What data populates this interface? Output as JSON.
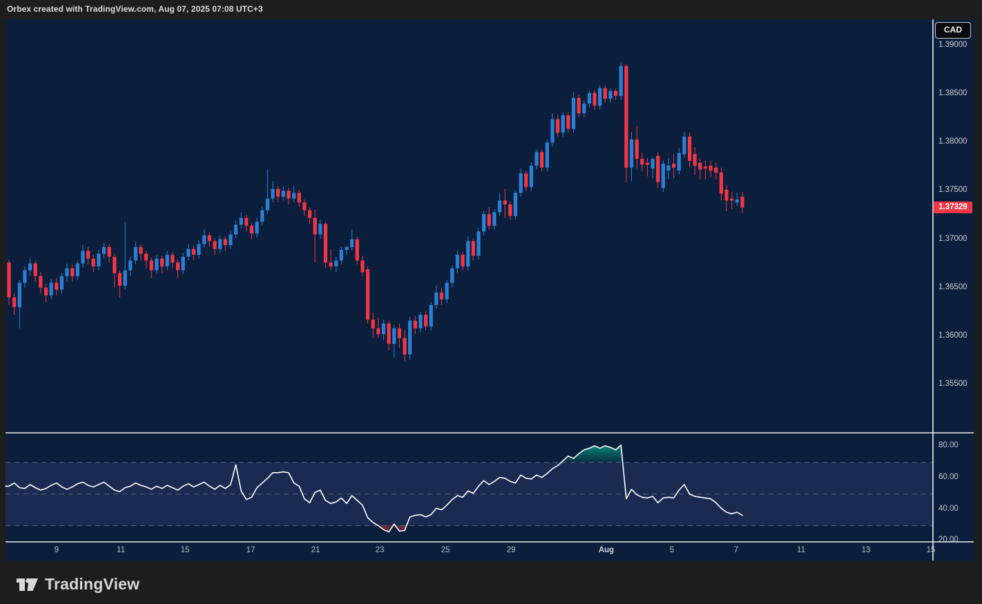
{
  "header": {
    "attribution": "Orbex created with TradingView.com, Aug 07, 2025 07:08 UTC+3"
  },
  "price_scale": {
    "currency_badge": "CAD",
    "tick_labels": [
      "1.39000",
      "1.38500",
      "1.38000",
      "1.37500",
      "1.37000",
      "1.36500",
      "1.36000",
      "1.35500"
    ],
    "tick_values": [
      1.39,
      1.385,
      1.38,
      1.375,
      1.37,
      1.365,
      1.36,
      1.355
    ],
    "last_price_label": "1.37329",
    "last_price": 1.37329,
    "last_price_bg": "#f23645"
  },
  "indicator_scale": {
    "tick_labels": [
      "80.00",
      "60.00",
      "40.00",
      "20.00"
    ],
    "tick_values": [
      80,
      60,
      40,
      20
    ]
  },
  "time_scale": {
    "labels": [
      {
        "text": "9",
        "x": 82
      },
      {
        "text": "11",
        "x": 175
      },
      {
        "text": "15",
        "x": 268
      },
      {
        "text": "17",
        "x": 363
      },
      {
        "text": "21",
        "x": 457
      },
      {
        "text": "23",
        "x": 550
      },
      {
        "text": "25",
        "x": 645
      },
      {
        "text": "29",
        "x": 740
      },
      {
        "text": "Aug",
        "x": 878,
        "month": true
      },
      {
        "text": "5",
        "x": 973
      },
      {
        "text": "7",
        "x": 1066
      },
      {
        "text": "11",
        "x": 1160
      },
      {
        "text": "13",
        "x": 1254
      },
      {
        "text": "15",
        "x": 1348
      }
    ]
  },
  "footer": {
    "logo_text": "TradingView"
  },
  "colors": {
    "frame_bg": "#1d1d1d",
    "pane_bg": "#0b1f3c",
    "band_fill": "#1a2a50",
    "separator": "#eceef1",
    "dashed_level": "#9097a3",
    "up": "#2b80d6",
    "down": "#f23645",
    "rsi_line": "#ffffff",
    "overbought_fill": "#089981",
    "oversold_fill": "#f23645",
    "axis_text": "#cdd0d6"
  },
  "chart_data": {
    "type": "candlestick",
    "title": "",
    "currency": "CAD",
    "price_pane": {
      "ylim": [
        1.35,
        1.3927
      ],
      "grid": false,
      "ohlc": [
        [
          1.3676,
          1.3679,
          1.3632,
          1.364
        ],
        [
          1.364,
          1.3644,
          1.3622,
          1.363
        ],
        [
          1.363,
          1.3658,
          1.3608,
          1.3655
        ],
        [
          1.3655,
          1.3672,
          1.365,
          1.3668
        ],
        [
          1.3668,
          1.3681,
          1.3662,
          1.3675
        ],
        [
          1.3675,
          1.3678,
          1.3656,
          1.3662
        ],
        [
          1.3662,
          1.3666,
          1.3644,
          1.365
        ],
        [
          1.365,
          1.3654,
          1.3635,
          1.3642
        ],
        [
          1.3642,
          1.3659,
          1.3638,
          1.3655
        ],
        [
          1.3655,
          1.366,
          1.3642,
          1.3648
        ],
        [
          1.3648,
          1.3665,
          1.3644,
          1.3662
        ],
        [
          1.3662,
          1.3675,
          1.3656,
          1.367
        ],
        [
          1.367,
          1.3674,
          1.3656,
          1.3662
        ],
        [
          1.3662,
          1.3678,
          1.3658,
          1.3675
        ],
        [
          1.3675,
          1.3694,
          1.3671,
          1.3688
        ],
        [
          1.3688,
          1.3692,
          1.3674,
          1.368
        ],
        [
          1.368,
          1.3684,
          1.3666,
          1.3672
        ],
        [
          1.3672,
          1.3689,
          1.3668,
          1.3685
        ],
        [
          1.3685,
          1.3696,
          1.368,
          1.3692
        ],
        [
          1.3692,
          1.3695,
          1.3676,
          1.3682
        ],
        [
          1.3682,
          1.3685,
          1.365,
          1.3665
        ],
        [
          1.3665,
          1.3668,
          1.364,
          1.3652
        ],
        [
          1.3652,
          1.3718,
          1.3648,
          1.3668
        ],
        [
          1.3668,
          1.3682,
          1.3662,
          1.3678
        ],
        [
          1.3678,
          1.3698,
          1.3674,
          1.3692
        ],
        [
          1.3692,
          1.3695,
          1.3678,
          1.3685
        ],
        [
          1.3685,
          1.3688,
          1.367,
          1.3678
        ],
        [
          1.3678,
          1.3681,
          1.366,
          1.3668
        ],
        [
          1.3668,
          1.3684,
          1.3664,
          1.368
        ],
        [
          1.368,
          1.3683,
          1.3665,
          1.3672
        ],
        [
          1.3672,
          1.3688,
          1.3668,
          1.3684
        ],
        [
          1.3684,
          1.3687,
          1.367,
          1.3676
        ],
        [
          1.3676,
          1.3679,
          1.366,
          1.3668
        ],
        [
          1.3668,
          1.3686,
          1.3664,
          1.3682
        ],
        [
          1.3682,
          1.3695,
          1.3678,
          1.369
        ],
        [
          1.369,
          1.3693,
          1.3678,
          1.3684
        ],
        [
          1.3684,
          1.3699,
          1.368,
          1.3695
        ],
        [
          1.3695,
          1.371,
          1.3691,
          1.3704
        ],
        [
          1.3704,
          1.3707,
          1.3692,
          1.3698
        ],
        [
          1.3698,
          1.3701,
          1.3684,
          1.369
        ],
        [
          1.369,
          1.3704,
          1.3686,
          1.37
        ],
        [
          1.37,
          1.3703,
          1.3688,
          1.3694
        ],
        [
          1.3694,
          1.3709,
          1.369,
          1.3705
        ],
        [
          1.3705,
          1.3719,
          1.3701,
          1.3715
        ],
        [
          1.3715,
          1.3728,
          1.3711,
          1.3722
        ],
        [
          1.3722,
          1.3725,
          1.3708,
          1.3714
        ],
        [
          1.3714,
          1.3717,
          1.37,
          1.3706
        ],
        [
          1.3706,
          1.3722,
          1.3702,
          1.3718
        ],
        [
          1.3718,
          1.3734,
          1.3714,
          1.373
        ],
        [
          1.373,
          1.3772,
          1.3726,
          1.3742
        ],
        [
          1.3742,
          1.376,
          1.3738,
          1.3752
        ],
        [
          1.3752,
          1.3755,
          1.3738,
          1.3744
        ],
        [
          1.3744,
          1.3754,
          1.374,
          1.375
        ],
        [
          1.375,
          1.3753,
          1.3736,
          1.3742
        ],
        [
          1.3742,
          1.3755,
          1.3738,
          1.3748
        ],
        [
          1.3748,
          1.3751,
          1.3733,
          1.3738
        ],
        [
          1.3738,
          1.3741,
          1.3724,
          1.373
        ],
        [
          1.373,
          1.3733,
          1.3716,
          1.3722
        ],
        [
          1.3722,
          1.3731,
          1.3676,
          1.3705
        ],
        [
          1.3705,
          1.372,
          1.37,
          1.3716
        ],
        [
          1.3716,
          1.3719,
          1.367,
          1.3676
        ],
        [
          1.3676,
          1.369,
          1.3668,
          1.3672
        ],
        [
          1.3672,
          1.3682,
          1.3666,
          1.3678
        ],
        [
          1.3678,
          1.3692,
          1.3674,
          1.3689
        ],
        [
          1.3689,
          1.3694,
          1.3684,
          1.3692
        ],
        [
          1.3692,
          1.371,
          1.3688,
          1.37
        ],
        [
          1.37,
          1.3703,
          1.3674,
          1.3678
        ],
        [
          1.3678,
          1.3683,
          1.3662,
          1.3666
        ],
        [
          1.3669,
          1.3672,
          1.3613,
          1.3617
        ],
        [
          1.3617,
          1.3624,
          1.3598,
          1.3608
        ],
        [
          1.3608,
          1.3619,
          1.3598,
          1.3602
        ],
        [
          1.3602,
          1.3617,
          1.3596,
          1.3613
        ],
        [
          1.3613,
          1.3616,
          1.3585,
          1.3592
        ],
        [
          1.3592,
          1.3612,
          1.3578,
          1.3608
        ],
        [
          1.3608,
          1.3613,
          1.3588,
          1.3598
        ],
        [
          1.3598,
          1.3606,
          1.3574,
          1.3581
        ],
        [
          1.3581,
          1.362,
          1.3576,
          1.3616
        ],
        [
          1.3616,
          1.3621,
          1.3602,
          1.3608
        ],
        [
          1.3608,
          1.3625,
          1.3604,
          1.3622
        ],
        [
          1.3622,
          1.3626,
          1.3606,
          1.361
        ],
        [
          1.361,
          1.3635,
          1.3606,
          1.3632
        ],
        [
          1.3632,
          1.3652,
          1.3628,
          1.3645
        ],
        [
          1.3645,
          1.365,
          1.3632,
          1.3638
        ],
        [
          1.3638,
          1.3658,
          1.3634,
          1.3655
        ],
        [
          1.3655,
          1.3673,
          1.365,
          1.367
        ],
        [
          1.367,
          1.3688,
          1.3665,
          1.3684
        ],
        [
          1.3684,
          1.3687,
          1.3668,
          1.3672
        ],
        [
          1.3672,
          1.3703,
          1.3668,
          1.3698
        ],
        [
          1.3698,
          1.3701,
          1.3678,
          1.3683
        ],
        [
          1.3683,
          1.3711,
          1.3679,
          1.3708
        ],
        [
          1.3708,
          1.3729,
          1.3704,
          1.3726
        ],
        [
          1.3726,
          1.3733,
          1.371,
          1.3714
        ],
        [
          1.3714,
          1.3731,
          1.371,
          1.3728
        ],
        [
          1.3728,
          1.3748,
          1.3724,
          1.374
        ],
        [
          1.374,
          1.3752,
          1.3722,
          1.3736
        ],
        [
          1.3736,
          1.3739,
          1.372,
          1.3724
        ],
        [
          1.3724,
          1.375,
          1.372,
          1.3748
        ],
        [
          1.3748,
          1.3773,
          1.3744,
          1.3768
        ],
        [
          1.3768,
          1.3771,
          1.375,
          1.3754
        ],
        [
          1.3754,
          1.3779,
          1.375,
          1.3776
        ],
        [
          1.3776,
          1.3793,
          1.3772,
          1.379
        ],
        [
          1.379,
          1.3793,
          1.377,
          1.3774
        ],
        [
          1.3774,
          1.3803,
          1.377,
          1.38
        ],
        [
          1.38,
          1.383,
          1.3796,
          1.3824
        ],
        [
          1.3824,
          1.3828,
          1.3806,
          1.381
        ],
        [
          1.381,
          1.3831,
          1.3806,
          1.3828
        ],
        [
          1.3828,
          1.3831,
          1.381,
          1.3814
        ],
        [
          1.3814,
          1.3852,
          1.381,
          1.3846
        ],
        [
          1.3846,
          1.3849,
          1.3826,
          1.383
        ],
        [
          1.383,
          1.3843,
          1.3826,
          1.384
        ],
        [
          1.384,
          1.3854,
          1.3836,
          1.3851
        ],
        [
          1.3851,
          1.3854,
          1.3834,
          1.3838
        ],
        [
          1.3838,
          1.3859,
          1.3834,
          1.3856
        ],
        [
          1.3856,
          1.3859,
          1.3841,
          1.3845
        ],
        [
          1.3845,
          1.3856,
          1.3841,
          1.3853
        ],
        [
          1.3853,
          1.3856,
          1.3844,
          1.3848
        ],
        [
          1.3848,
          1.3883,
          1.3844,
          1.3879
        ],
        [
          1.3879,
          1.3881,
          1.3759,
          1.3774
        ],
        [
          1.3774,
          1.3811,
          1.376,
          1.3803
        ],
        [
          1.3803,
          1.3817,
          1.3773,
          1.3783
        ],
        [
          1.3783,
          1.3789,
          1.377,
          1.3777
        ],
        [
          1.3779,
          1.3784,
          1.3765,
          1.3777
        ],
        [
          1.3773,
          1.3785,
          1.3763,
          1.3783
        ],
        [
          1.3786,
          1.379,
          1.3753,
          1.3759
        ],
        [
          1.3753,
          1.3781,
          1.3749,
          1.3778
        ],
        [
          1.3771,
          1.3784,
          1.3762,
          1.3776
        ],
        [
          1.3778,
          1.3788,
          1.3763,
          1.3774
        ],
        [
          1.3771,
          1.3794,
          1.3767,
          1.3789
        ],
        [
          1.3788,
          1.3811,
          1.3784,
          1.3806
        ],
        [
          1.3806,
          1.381,
          1.3774,
          1.3781
        ],
        [
          1.3788,
          1.3795,
          1.3766,
          1.3776
        ],
        [
          1.3779,
          1.3784,
          1.3762,
          1.3772
        ],
        [
          1.3775,
          1.3781,
          1.3762,
          1.3773
        ],
        [
          1.3776,
          1.3781,
          1.3764,
          1.3771
        ],
        [
          1.3774,
          1.3779,
          1.3762,
          1.3769
        ],
        [
          1.3769,
          1.3774,
          1.374,
          1.3747
        ],
        [
          1.3751,
          1.3756,
          1.3729,
          1.374
        ],
        [
          1.3742,
          1.3749,
          1.3731,
          1.374
        ],
        [
          1.3738,
          1.3748,
          1.3734,
          1.3741
        ],
        [
          1.3744,
          1.3749,
          1.3727,
          1.37329
        ]
      ]
    },
    "indicator_pane": {
      "name": "oscillator",
      "ylim": [
        19.7,
        88.7
      ],
      "levels": [
        70,
        50,
        30
      ],
      "band": [
        30,
        70
      ],
      "values": [
        55,
        57,
        54,
        53.5,
        56,
        54,
        52.5,
        53.5,
        55.5,
        57,
        54.5,
        53,
        54.5,
        56.5,
        57.5,
        55.5,
        54.5,
        56,
        57.5,
        55,
        52.5,
        51.5,
        54,
        55,
        57,
        55.5,
        54.5,
        53,
        55,
        53.5,
        55.5,
        54,
        52.5,
        55,
        56.5,
        54.5,
        56,
        57.5,
        55,
        53,
        55.5,
        53.5,
        56,
        68.5,
        52,
        46.5,
        48,
        54,
        57,
        60,
        63.5,
        63.5,
        64,
        63.5,
        57,
        55,
        47,
        44.5,
        51,
        52.5,
        46,
        44,
        45,
        47.5,
        44,
        49,
        46,
        43,
        35,
        32,
        30,
        27.5,
        26,
        31,
        26.5,
        27,
        35.5,
        36.5,
        37,
        35.5,
        37,
        41,
        40,
        43,
        46.5,
        49,
        48,
        52,
        50.5,
        55,
        58.5,
        56,
        58,
        60.5,
        60,
        58,
        57,
        62,
        60,
        59.5,
        62,
        60.5,
        63,
        66,
        68,
        71,
        74,
        72.5,
        75.5,
        78,
        79,
        80.5,
        79,
        80.5,
        79.5,
        78,
        81,
        47,
        53,
        49.5,
        48,
        47.5,
        48.5,
        44.5,
        47.5,
        48,
        47.5,
        52.5,
        56,
        50,
        48.5,
        48,
        47.5,
        47,
        44.5,
        41,
        38.5,
        37.5,
        38.5,
        36.5
      ]
    }
  }
}
